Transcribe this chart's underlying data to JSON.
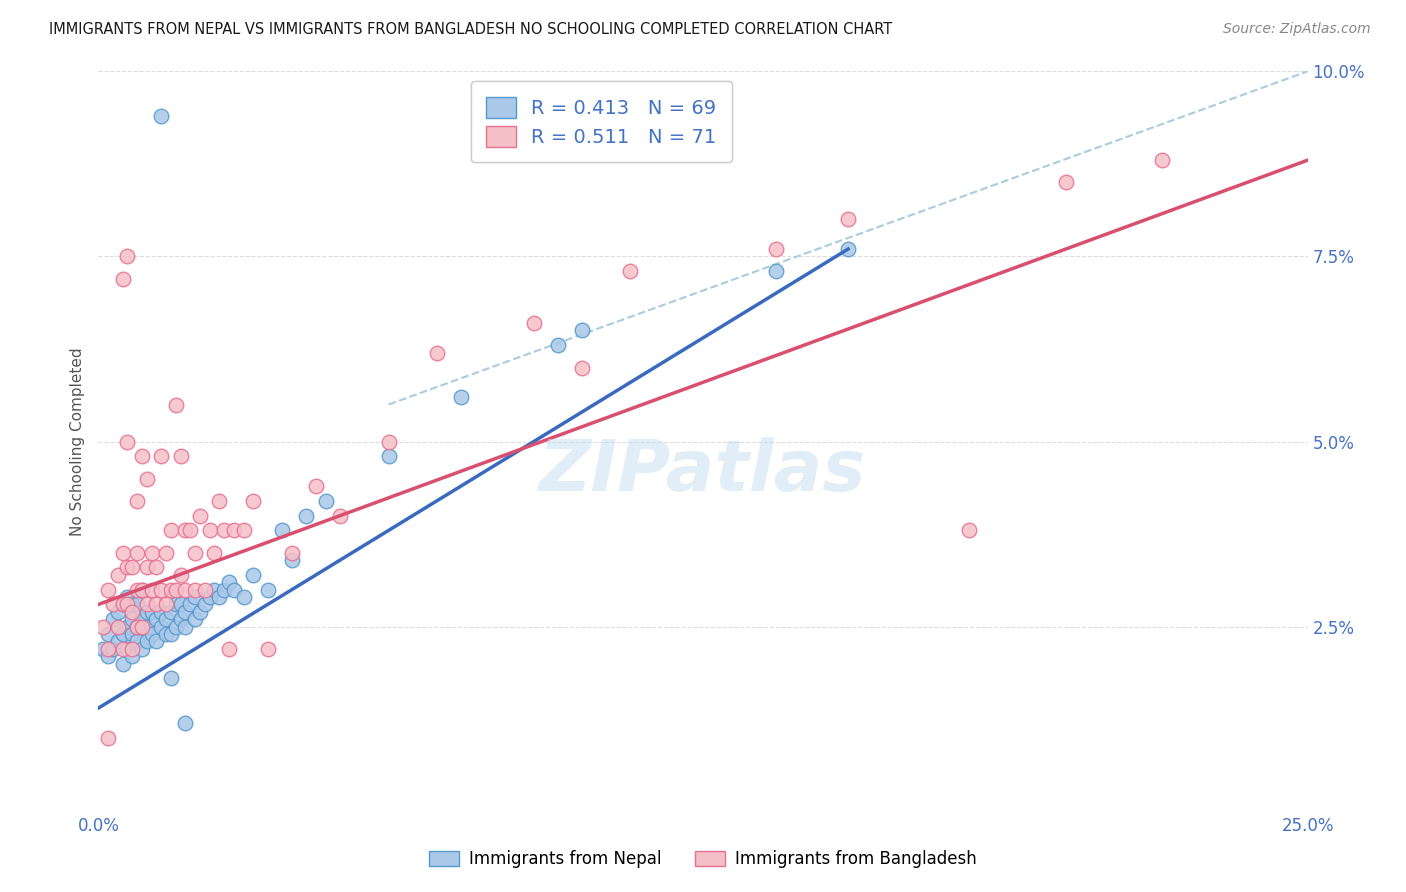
{
  "title": "IMMIGRANTS FROM NEPAL VS IMMIGRANTS FROM BANGLADESH NO SCHOOLING COMPLETED CORRELATION CHART",
  "source": "Source: ZipAtlas.com",
  "ylabel": "No Schooling Completed",
  "xlim": [
    0,
    0.25
  ],
  "ylim": [
    0,
    0.1
  ],
  "nepal_color": "#aac8e8",
  "nepal_edge_color": "#5599cc",
  "bangladesh_color": "#f5bfc8",
  "bangladesh_edge_color": "#e87090",
  "nepal_line_color": "#3a6abf",
  "bangladesh_line_color": "#d94f70",
  "ref_line_color": "#aaccdd",
  "nepal_R": "0.413",
  "nepal_N": "69",
  "bangladesh_R": "0.511",
  "bangladesh_N": "71",
  "legend_label_nepal": "Immigrants from Nepal",
  "legend_label_bangladesh": "Immigrants from Bangladesh",
  "watermark": "ZIPatlas",
  "nepal_line_x": [
    0.0,
    0.155
  ],
  "nepal_line_y": [
    0.014,
    0.076
  ],
  "bangladesh_line_x": [
    0.0,
    0.25
  ],
  "bangladesh_line_y": [
    0.028,
    0.088
  ],
  "ref_line_x": [
    0.06,
    0.25
  ],
  "ref_line_y": [
    0.055,
    0.1
  ],
  "nepal_scatter_x": [
    0.001,
    0.002,
    0.002,
    0.003,
    0.003,
    0.004,
    0.004,
    0.005,
    0.005,
    0.005,
    0.006,
    0.006,
    0.006,
    0.007,
    0.007,
    0.007,
    0.007,
    0.008,
    0.008,
    0.008,
    0.009,
    0.009,
    0.009,
    0.01,
    0.01,
    0.01,
    0.011,
    0.011,
    0.012,
    0.012,
    0.013,
    0.013,
    0.014,
    0.014,
    0.015,
    0.015,
    0.016,
    0.016,
    0.017,
    0.017,
    0.018,
    0.018,
    0.019,
    0.02,
    0.02,
    0.021,
    0.022,
    0.023,
    0.024,
    0.025,
    0.026,
    0.027,
    0.028,
    0.03,
    0.032,
    0.035,
    0.038,
    0.04,
    0.043,
    0.047,
    0.06,
    0.075,
    0.095,
    0.1,
    0.14,
    0.155,
    0.013,
    0.015,
    0.018
  ],
  "nepal_scatter_y": [
    0.022,
    0.021,
    0.024,
    0.022,
    0.026,
    0.023,
    0.027,
    0.02,
    0.024,
    0.028,
    0.022,
    0.025,
    0.029,
    0.021,
    0.024,
    0.026,
    0.028,
    0.023,
    0.025,
    0.028,
    0.022,
    0.026,
    0.03,
    0.023,
    0.025,
    0.027,
    0.024,
    0.027,
    0.023,
    0.026,
    0.025,
    0.027,
    0.024,
    0.026,
    0.024,
    0.027,
    0.025,
    0.028,
    0.026,
    0.028,
    0.025,
    0.027,
    0.028,
    0.026,
    0.029,
    0.027,
    0.028,
    0.029,
    0.03,
    0.029,
    0.03,
    0.031,
    0.03,
    0.029,
    0.032,
    0.03,
    0.038,
    0.034,
    0.04,
    0.042,
    0.048,
    0.056,
    0.063,
    0.065,
    0.073,
    0.076,
    0.094,
    0.018,
    0.012
  ],
  "bangladesh_scatter_x": [
    0.001,
    0.002,
    0.002,
    0.003,
    0.004,
    0.004,
    0.005,
    0.005,
    0.005,
    0.006,
    0.006,
    0.006,
    0.007,
    0.007,
    0.007,
    0.008,
    0.008,
    0.008,
    0.008,
    0.009,
    0.009,
    0.009,
    0.01,
    0.01,
    0.01,
    0.011,
    0.011,
    0.012,
    0.012,
    0.013,
    0.013,
    0.014,
    0.014,
    0.015,
    0.015,
    0.016,
    0.016,
    0.017,
    0.017,
    0.018,
    0.018,
    0.019,
    0.02,
    0.02,
    0.021,
    0.022,
    0.023,
    0.024,
    0.025,
    0.026,
    0.027,
    0.028,
    0.03,
    0.032,
    0.035,
    0.04,
    0.045,
    0.05,
    0.06,
    0.07,
    0.09,
    0.11,
    0.14,
    0.155,
    0.18,
    0.2,
    0.22,
    0.005,
    0.006,
    0.1,
    0.002
  ],
  "bangladesh_scatter_y": [
    0.025,
    0.022,
    0.03,
    0.028,
    0.025,
    0.032,
    0.022,
    0.028,
    0.035,
    0.028,
    0.033,
    0.05,
    0.022,
    0.027,
    0.033,
    0.025,
    0.03,
    0.035,
    0.042,
    0.025,
    0.03,
    0.048,
    0.028,
    0.033,
    0.045,
    0.03,
    0.035,
    0.028,
    0.033,
    0.03,
    0.048,
    0.028,
    0.035,
    0.03,
    0.038,
    0.03,
    0.055,
    0.032,
    0.048,
    0.03,
    0.038,
    0.038,
    0.03,
    0.035,
    0.04,
    0.03,
    0.038,
    0.035,
    0.042,
    0.038,
    0.022,
    0.038,
    0.038,
    0.042,
    0.022,
    0.035,
    0.044,
    0.04,
    0.05,
    0.062,
    0.066,
    0.073,
    0.076,
    0.08,
    0.038,
    0.085,
    0.088,
    0.072,
    0.075,
    0.06,
    0.01
  ]
}
